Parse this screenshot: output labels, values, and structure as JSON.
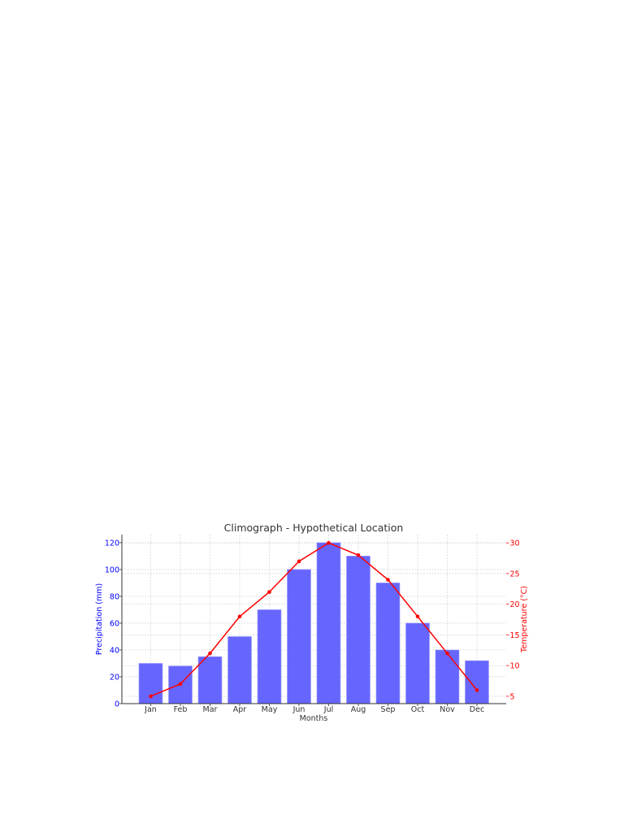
{
  "chart_data": {
    "type": "bar+line",
    "title": "Climograph - Hypothetical Location",
    "xlabel": "Months",
    "categories": [
      "Jan",
      "Feb",
      "Mar",
      "Apr",
      "May",
      "Jun",
      "Jul",
      "Aug",
      "Sep",
      "Oct",
      "Nov",
      "Dec"
    ],
    "series": [
      {
        "name": "Precipitation (mm)",
        "type": "bar",
        "axis": "left",
        "color": "#6666ff",
        "values": [
          30,
          28,
          35,
          50,
          70,
          100,
          120,
          110,
          90,
          60,
          40,
          32
        ]
      },
      {
        "name": "Temperature (°C)",
        "type": "line",
        "axis": "right",
        "color": "#ff0000",
        "values": [
          5,
          7,
          12,
          18,
          22,
          27,
          30,
          28,
          24,
          18,
          12,
          6
        ]
      }
    ],
    "y_left": {
      "label": "Precipitation (mm)",
      "ticks": [
        0,
        20,
        40,
        60,
        80,
        100,
        120
      ],
      "ylim": [
        0,
        126
      ],
      "color": "#0000ff"
    },
    "y_right": {
      "label": "Temperature (°C)",
      "ticks": [
        5,
        10,
        15,
        20,
        25,
        30
      ],
      "ylim": [
        3.8,
        31.35
      ],
      "color": "#ff0000"
    },
    "grid": true,
    "legend": null
  }
}
